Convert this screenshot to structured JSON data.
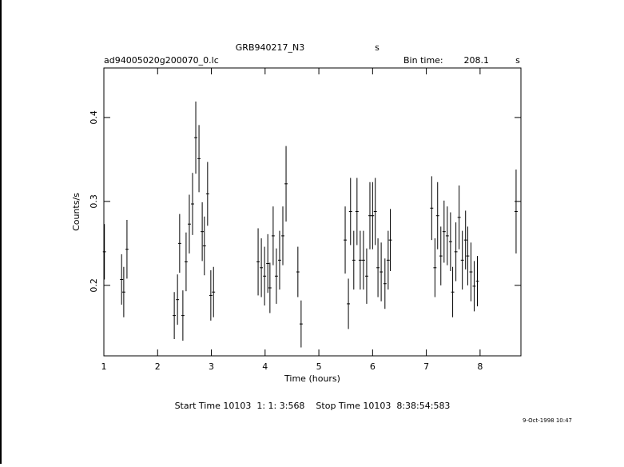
{
  "chart_data": {
    "type": "errorbar",
    "title": "GRB940217_N3",
    "title_unit": "s",
    "file_name": "ad94005020g200070_0.lc",
    "bin_time_label": "Bin time:",
    "bin_time": "208.1",
    "bin_time_unit": "s",
    "x_label": "Time (hours)",
    "y_label": "Counts/s",
    "footer": "Start Time 10103  1: 1: 3:568    Stop Time 10103  8:38:54:583",
    "date_stamp": "9-Oct-1998 10:47",
    "xlim": [
      1,
      8.76
    ],
    "ylim": [
      0.116,
      0.459
    ],
    "xticks": [
      1,
      2,
      3,
      4,
      5,
      6,
      7,
      8
    ],
    "yticks": [
      0.2,
      0.3,
      0.4
    ],
    "color": "#000000",
    "xerr": 0.029,
    "series": [
      {
        "name": "Counts/s",
        "x": [
          1.01,
          1.33,
          1.37,
          1.43,
          2.31,
          2.37,
          2.41,
          2.47,
          2.53,
          2.59,
          2.65,
          2.71,
          2.77,
          2.83,
          2.87,
          2.93,
          2.99,
          3.04,
          3.87,
          3.93,
          3.99,
          4.05,
          4.09,
          4.15,
          4.21,
          4.27,
          4.33,
          4.39,
          4.61,
          4.67,
          5.49,
          5.55,
          5.59,
          5.65,
          5.71,
          5.77,
          5.83,
          5.89,
          5.95,
          6.0,
          6.05,
          6.1,
          6.16,
          6.23,
          6.29,
          6.33,
          7.1,
          7.16,
          7.21,
          7.27,
          7.33,
          7.39,
          7.45,
          7.49,
          7.55,
          7.61,
          7.67,
          7.73,
          7.77,
          7.83,
          7.89,
          7.95,
          8.67
        ],
        "values": [
          0.24,
          0.207,
          0.192,
          0.243,
          0.164,
          0.183,
          0.25,
          0.164,
          0.228,
          0.273,
          0.297,
          0.376,
          0.351,
          0.264,
          0.247,
          0.309,
          0.188,
          0.192,
          0.228,
          0.221,
          0.211,
          0.226,
          0.197,
          0.259,
          0.211,
          0.23,
          0.259,
          0.321,
          0.216,
          0.154,
          0.254,
          0.178,
          0.288,
          0.23,
          0.288,
          0.23,
          0.23,
          0.211,
          0.283,
          0.283,
          0.288,
          0.221,
          0.216,
          0.202,
          0.23,
          0.254,
          0.292,
          0.221,
          0.283,
          0.235,
          0.264,
          0.259,
          0.252,
          0.192,
          0.24,
          0.281,
          0.23,
          0.254,
          0.235,
          0.216,
          0.199,
          0.205,
          0.288
        ],
        "errors": [
          0.033,
          0.03,
          0.03,
          0.035,
          0.028,
          0.03,
          0.035,
          0.03,
          0.035,
          0.035,
          0.037,
          0.043,
          0.04,
          0.035,
          0.035,
          0.038,
          0.03,
          0.03,
          0.04,
          0.035,
          0.035,
          0.035,
          0.03,
          0.035,
          0.033,
          0.035,
          0.035,
          0.045,
          0.03,
          0.028,
          0.04,
          0.03,
          0.04,
          0.035,
          0.04,
          0.035,
          0.035,
          0.033,
          0.04,
          0.04,
          0.04,
          0.035,
          0.035,
          0.03,
          0.035,
          0.037,
          0.038,
          0.035,
          0.04,
          0.035,
          0.037,
          0.035,
          0.035,
          0.03,
          0.035,
          0.038,
          0.035,
          0.035,
          0.035,
          0.035,
          0.03,
          0.03,
          0.05
        ]
      }
    ]
  }
}
